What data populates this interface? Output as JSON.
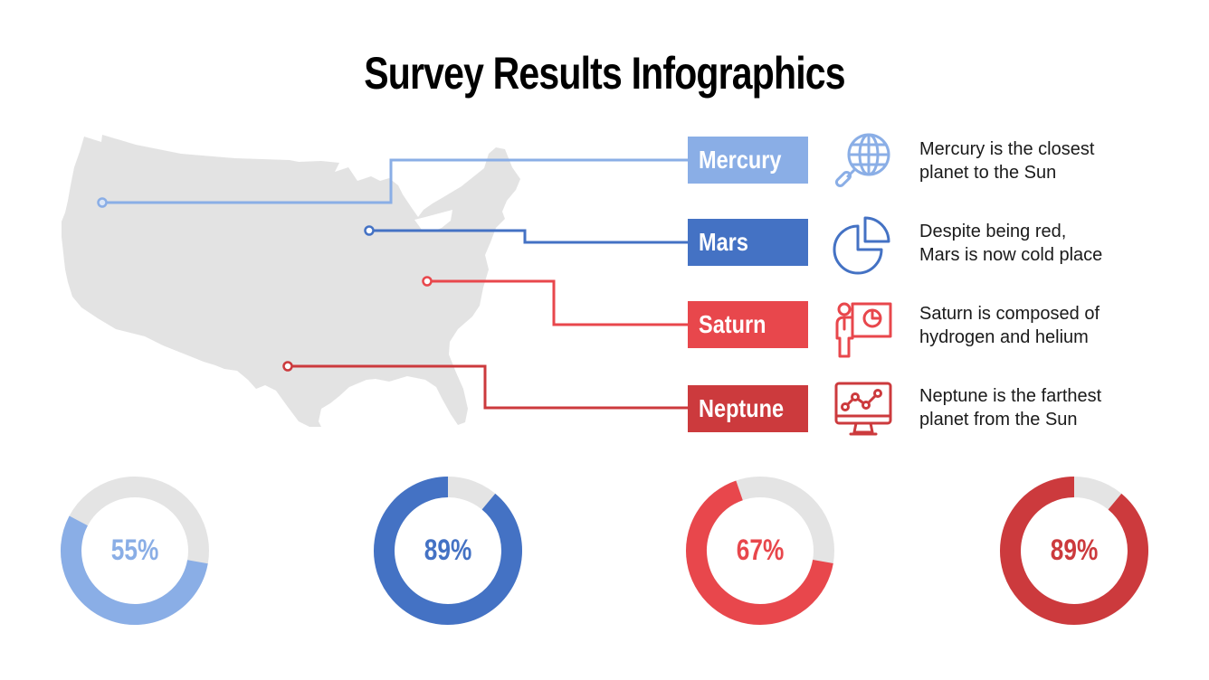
{
  "title": "Survey Results Infographics",
  "colors": {
    "light_blue": "#8aaee6",
    "blue": "#4472c4",
    "red": "#e8474c",
    "dark_red": "#cc3a3d",
    "map_gray": "#e3e3e3",
    "track_gray": "#e4e4e4"
  },
  "items": [
    {
      "label": "Mercury",
      "description_line1": "Mercury is the closest",
      "description_line2": "planet to the Sun",
      "icon": "globe-search-icon",
      "color": "#8aaee6"
    },
    {
      "label": "Mars",
      "description_line1": "Despite being red,",
      "description_line2": "Mars is now cold place",
      "icon": "pie-chart-icon",
      "color": "#4472c4"
    },
    {
      "label": "Saturn",
      "description_line1": "Saturn is composed of",
      "description_line2": "hydrogen and helium",
      "icon": "presenter-icon",
      "color": "#e8474c"
    },
    {
      "label": "Neptune",
      "description_line1": "Neptune is the farthest",
      "description_line2": "planet from the Sun",
      "icon": "monitor-line-chart-icon",
      "color": "#cc3a3d"
    }
  ],
  "donuts": [
    {
      "value": 55,
      "label": "55%",
      "color": "#8aaee6"
    },
    {
      "value": 89,
      "label": "89%",
      "color": "#4472c4"
    },
    {
      "value": 67,
      "label": "67%",
      "color": "#e8474c"
    },
    {
      "value": 89,
      "label": "89%",
      "color": "#cc3a3d"
    }
  ],
  "chart_data": {
    "type": "pie",
    "title": "Survey Results Infographics",
    "categories": [
      "Mercury",
      "Mars",
      "Saturn",
      "Neptune"
    ],
    "values": [
      55,
      89,
      67,
      89
    ],
    "unit": "%",
    "style": "donut"
  }
}
